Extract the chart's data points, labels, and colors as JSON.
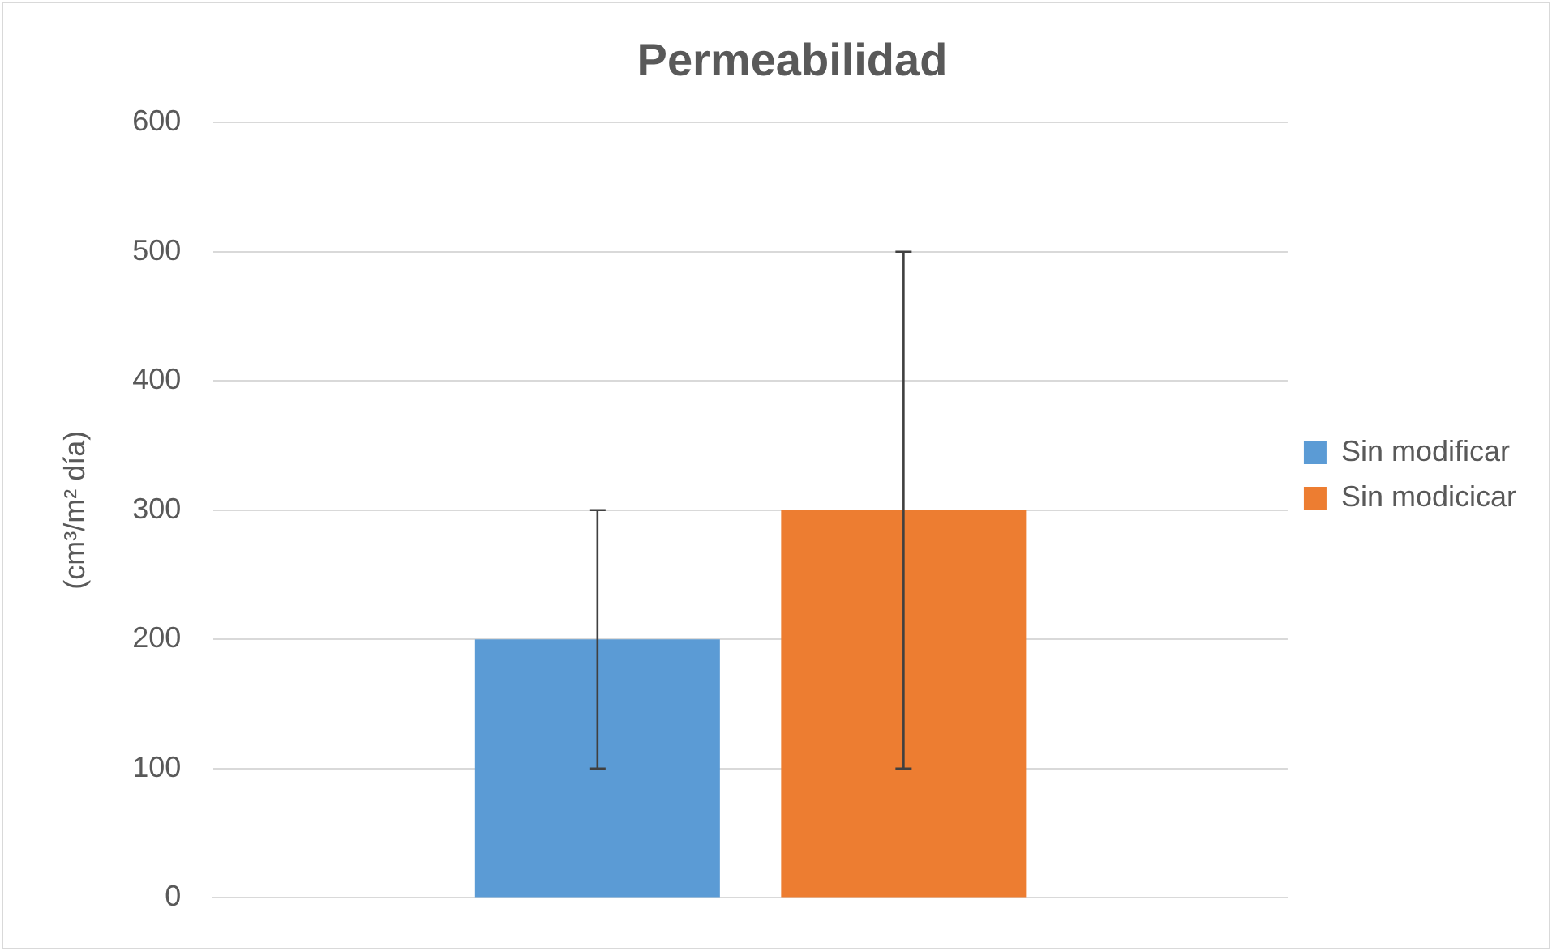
{
  "chart_data": {
    "type": "bar",
    "title": "Permeabilidad",
    "ylabel": "(cm³/m² día)",
    "categories": [
      null
    ],
    "series": [
      {
        "name": "Sin modificar",
        "color": "#5b9bd5",
        "values": [
          200
        ],
        "errors": [
          [
            100,
            300
          ]
        ]
      },
      {
        "name": "Sin modicicar",
        "color": "#ed7d31",
        "values": [
          300
        ],
        "errors": [
          [
            100,
            500
          ]
        ]
      }
    ],
    "ylim": [
      0,
      600
    ],
    "yticks": [
      0,
      100,
      200,
      300,
      400,
      500,
      600
    ],
    "grid": "y",
    "legend": "right"
  }
}
